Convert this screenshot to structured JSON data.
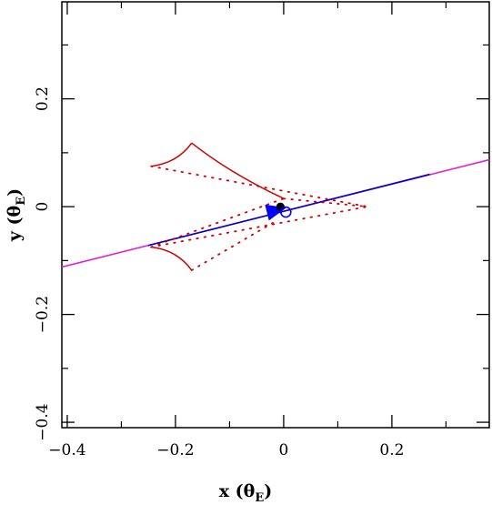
{
  "chart_data": {
    "type": "scatter",
    "xlabel": "x (θ",
    "xlabel_sub": "E",
    "xlabel_close": ")",
    "ylabel": "y (θ",
    "ylabel_sub": "E",
    "ylabel_close": ")",
    "xlim": [
      -0.41,
      0.38
    ],
    "ylim": [
      -0.41,
      0.38
    ],
    "x_ticks": [
      -0.4,
      -0.2,
      0,
      0.2
    ],
    "x_tick_labels": [
      "−0.4",
      "−0.2",
      "0",
      "0.2"
    ],
    "y_ticks": [
      -0.4,
      -0.2,
      0,
      0.2
    ],
    "y_tick_labels": [
      "−0.4",
      "−0.2",
      "0",
      "0.2"
    ],
    "minor_step": 0.1,
    "colors": {
      "caustic": "#cc0000",
      "trajectory": "#0000cc",
      "trajectory_ends": "#dd22dd",
      "arrow": "#0000ff",
      "lens": "#000000"
    },
    "caustic": {
      "cusps": [
        [
          -0.245,
          0.075
        ],
        [
          -0.17,
          0.118
        ],
        [
          0.0,
          0.015
        ],
        [
          -0.17,
          -0.118
        ],
        [
          -0.245,
          -0.075
        ]
      ],
      "dotted_to": [
        0.155,
        0.0
      ]
    },
    "trajectory": {
      "start": [
        -0.41,
        -0.112
      ],
      "end": [
        0.38,
        0.087
      ],
      "mid_from": [
        -0.25,
        -0.072
      ],
      "mid_to": [
        0.27,
        0.06
      ]
    },
    "arrow": {
      "from": [
        -0.035,
        -0.012
      ],
      "to": [
        0.005,
        -0.002
      ]
    },
    "source_circle": [
      0.004,
      -0.01
    ],
    "lens_point": [
      -0.006,
      0.0
    ]
  }
}
